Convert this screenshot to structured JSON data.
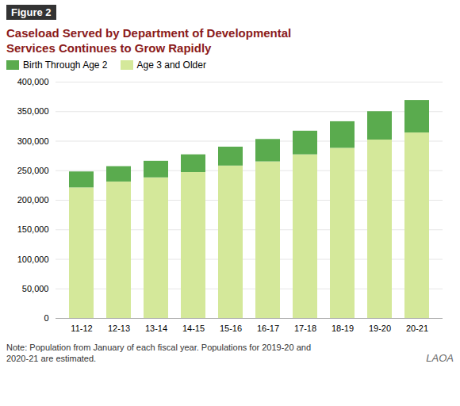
{
  "chart_data": {
    "type": "bar",
    "stacked": true,
    "title": "Caseload Served by Department of Developmental\nServices Continues to Grow Rapidly",
    "annotations": [
      "Figure 2",
      "Note: Population from January of each fiscal year. Populations for 2019-20 and\n2020-21 are estimated.",
      "LAOA"
    ],
    "categories": [
      "11-12",
      "12-13",
      "13-14",
      "14-15",
      "15-16",
      "16-17",
      "17-18",
      "18-19",
      "19-20",
      "20-21"
    ],
    "series": [
      {
        "name": "Age 3 and Older",
        "color": "#d4e89a",
        "values": [
          221000,
          231000,
          238000,
          247000,
          258000,
          265000,
          277000,
          288000,
          302000,
          314000
        ]
      },
      {
        "name": "Birth Through Age 2",
        "color": "#5aab4e",
        "values": [
          27000,
          26000,
          28000,
          30000,
          32000,
          38000,
          40000,
          45000,
          48000,
          55000
        ]
      }
    ],
    "ylim": [
      0,
      400000
    ],
    "yticks": [
      0,
      {
        "value": 50000,
        "label": "50,000"
      },
      {
        "value": 100000,
        "label": "100,000"
      },
      {
        "value": 150000,
        "label": "150,000"
      },
      {
        "value": 200000,
        "label": "200,000"
      },
      {
        "value": 250000,
        "label": "250,000"
      },
      {
        "value": 300000,
        "label": "300,000"
      },
      {
        "value": 350000,
        "label": "350,000"
      },
      {
        "value": 400000,
        "label": "400,000"
      }
    ],
    "grid": true,
    "legend": "upper left"
  }
}
